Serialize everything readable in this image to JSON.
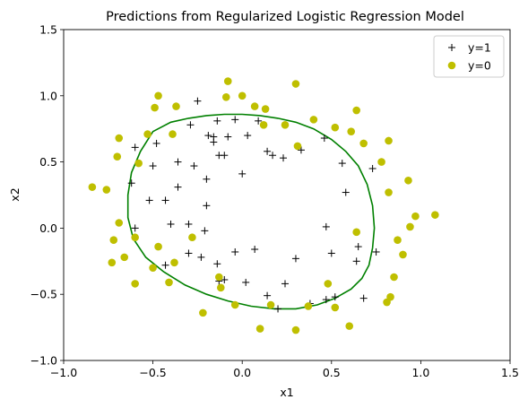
{
  "chart_data": {
    "type": "scatter",
    "title": "Predictions from Regularized Logistic Regression Model",
    "xlabel": "x1",
    "ylabel": "x2",
    "xlim": [
      -1.0,
      1.5
    ],
    "ylim": [
      -1.0,
      1.5
    ],
    "xticks": [
      -1.0,
      -0.5,
      0.0,
      0.5,
      1.0,
      1.5
    ],
    "yticks": [
      -1.0,
      -0.5,
      0.0,
      0.5,
      1.0,
      1.5
    ],
    "xtick_labels": [
      "−1.0",
      "−0.5",
      "0.0",
      "0.5",
      "1.0",
      "1.5"
    ],
    "ytick_labels": [
      "−1.0",
      "−0.5",
      "0.0",
      "0.5",
      "1.0",
      "1.5"
    ],
    "grid": false,
    "legend_position": "top-right",
    "series": [
      {
        "name": "y=1",
        "marker": "plus",
        "color": "#000000",
        "points": [
          [
            -0.25,
            0.96
          ],
          [
            -0.14,
            0.81
          ],
          [
            -0.04,
            0.82
          ],
          [
            0.09,
            0.81
          ],
          [
            -0.29,
            0.78
          ],
          [
            -0.19,
            0.7
          ],
          [
            -0.16,
            0.69
          ],
          [
            -0.08,
            0.69
          ],
          [
            0.03,
            0.7
          ],
          [
            0.14,
            0.58
          ],
          [
            0.17,
            0.55
          ],
          [
            0.23,
            0.53
          ],
          [
            0.33,
            0.59
          ],
          [
            0.46,
            0.68
          ],
          [
            -0.48,
            0.64
          ],
          [
            -0.6,
            0.61
          ],
          [
            -0.16,
            0.65
          ],
          [
            -0.5,
            0.47
          ],
          [
            -0.36,
            0.5
          ],
          [
            -0.27,
            0.47
          ],
          [
            -0.13,
            0.55
          ],
          [
            -0.1,
            0.55
          ],
          [
            -0.62,
            0.34
          ],
          [
            -0.2,
            0.37
          ],
          [
            -0.36,
            0.31
          ],
          [
            0.0,
            0.41
          ],
          [
            0.56,
            0.49
          ],
          [
            0.73,
            0.45
          ],
          [
            -0.52,
            0.21
          ],
          [
            -0.43,
            0.21
          ],
          [
            0.58,
            0.27
          ],
          [
            -0.6,
            0.0
          ],
          [
            -0.4,
            0.03
          ],
          [
            -0.3,
            0.03
          ],
          [
            -0.2,
            0.17
          ],
          [
            -0.21,
            -0.02
          ],
          [
            0.47,
            0.01
          ],
          [
            0.65,
            -0.14
          ],
          [
            0.75,
            -0.18
          ],
          [
            0.5,
            -0.19
          ],
          [
            -0.3,
            -0.19
          ],
          [
            -0.23,
            -0.22
          ],
          [
            -0.14,
            -0.27
          ],
          [
            -0.04,
            -0.18
          ],
          [
            0.07,
            -0.16
          ],
          [
            -0.43,
            -0.28
          ],
          [
            0.3,
            -0.23
          ],
          [
            0.64,
            -0.25
          ],
          [
            -0.13,
            -0.4
          ],
          [
            -0.1,
            -0.39
          ],
          [
            0.02,
            -0.41
          ],
          [
            0.24,
            -0.42
          ],
          [
            0.14,
            -0.51
          ],
          [
            0.52,
            -0.52
          ],
          [
            0.47,
            -0.54
          ],
          [
            0.68,
            -0.53
          ],
          [
            0.38,
            -0.57
          ],
          [
            0.2,
            -0.61
          ]
        ]
      },
      {
        "name": "y=0",
        "marker": "circle",
        "color": "#bfbf00",
        "points": [
          [
            -0.08,
            1.11
          ],
          [
            -0.47,
            1.0
          ],
          [
            0.0,
            1.0
          ],
          [
            0.3,
            1.09
          ],
          [
            -0.49,
            0.91
          ],
          [
            -0.37,
            0.92
          ],
          [
            -0.09,
            0.99
          ],
          [
            0.07,
            0.92
          ],
          [
            0.13,
            0.9
          ],
          [
            0.64,
            0.89
          ],
          [
            -0.39,
            0.71
          ],
          [
            -0.53,
            0.71
          ],
          [
            0.12,
            0.78
          ],
          [
            0.24,
            0.78
          ],
          [
            0.4,
            0.82
          ],
          [
            0.52,
            0.76
          ],
          [
            -0.69,
            0.68
          ],
          [
            0.61,
            0.73
          ],
          [
            0.31,
            0.62
          ],
          [
            0.68,
            0.64
          ],
          [
            -0.7,
            0.54
          ],
          [
            -0.58,
            0.49
          ],
          [
            0.82,
            0.66
          ],
          [
            0.78,
            0.5
          ],
          [
            -0.84,
            0.31
          ],
          [
            -0.76,
            0.29
          ],
          [
            0.82,
            0.27
          ],
          [
            0.93,
            0.36
          ],
          [
            -0.69,
            0.04
          ],
          [
            -0.6,
            -0.07
          ],
          [
            0.97,
            0.09
          ],
          [
            0.94,
            0.01
          ],
          [
            1.08,
            0.1
          ],
          [
            -0.72,
            -0.09
          ],
          [
            0.64,
            -0.03
          ],
          [
            0.87,
            -0.09
          ],
          [
            -0.47,
            -0.14
          ],
          [
            -0.28,
            -0.07
          ],
          [
            -0.66,
            -0.22
          ],
          [
            -0.73,
            -0.26
          ],
          [
            -0.38,
            -0.26
          ],
          [
            0.9,
            -0.2
          ],
          [
            -0.5,
            -0.3
          ],
          [
            -0.41,
            -0.41
          ],
          [
            -0.6,
            -0.42
          ],
          [
            -0.13,
            -0.37
          ],
          [
            -0.12,
            -0.45
          ],
          [
            0.85,
            -0.37
          ],
          [
            0.48,
            -0.42
          ],
          [
            -0.22,
            -0.64
          ],
          [
            -0.04,
            -0.58
          ],
          [
            0.16,
            -0.58
          ],
          [
            0.37,
            -0.59
          ],
          [
            0.52,
            -0.6
          ],
          [
            0.83,
            -0.52
          ],
          [
            0.81,
            -0.56
          ],
          [
            0.1,
            -0.76
          ],
          [
            0.3,
            -0.77
          ],
          [
            0.6,
            -0.74
          ]
        ]
      }
    ],
    "boundary": {
      "color": "#008000",
      "points": [
        [
          -0.5,
          0.73
        ],
        [
          -0.4,
          0.8
        ],
        [
          -0.3,
          0.83
        ],
        [
          -0.2,
          0.85
        ],
        [
          -0.1,
          0.86
        ],
        [
          0.0,
          0.86
        ],
        [
          0.1,
          0.85
        ],
        [
          0.2,
          0.83
        ],
        [
          0.3,
          0.8
        ],
        [
          0.4,
          0.75
        ],
        [
          0.5,
          0.67
        ],
        [
          0.58,
          0.58
        ],
        [
          0.65,
          0.47
        ],
        [
          0.7,
          0.33
        ],
        [
          0.73,
          0.17
        ],
        [
          0.74,
          0.0
        ],
        [
          0.73,
          -0.15
        ],
        [
          0.71,
          -0.28
        ],
        [
          0.67,
          -0.38
        ],
        [
          0.61,
          -0.46
        ],
        [
          0.52,
          -0.53
        ],
        [
          0.42,
          -0.58
        ],
        [
          0.3,
          -0.61
        ],
        [
          0.18,
          -0.61
        ],
        [
          0.05,
          -0.59
        ],
        [
          -0.08,
          -0.55
        ],
        [
          -0.2,
          -0.5
        ],
        [
          -0.32,
          -0.43
        ],
        [
          -0.44,
          -0.33
        ],
        [
          -0.54,
          -0.22
        ],
        [
          -0.61,
          -0.08
        ],
        [
          -0.64,
          0.08
        ],
        [
          -0.64,
          0.25
        ],
        [
          -0.62,
          0.42
        ],
        [
          -0.57,
          0.58
        ],
        [
          -0.5,
          0.73
        ]
      ]
    }
  }
}
